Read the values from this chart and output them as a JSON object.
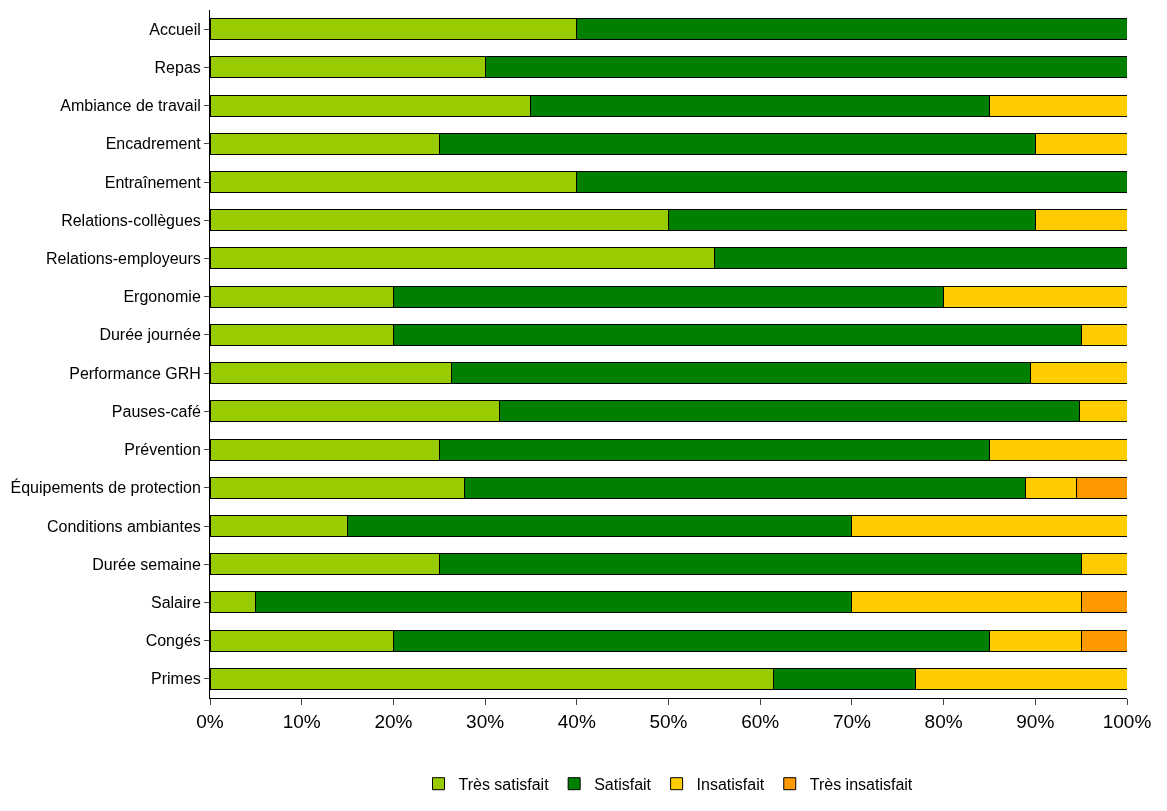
{
  "chart_data": {
    "type": "bar",
    "orientation": "horizontal",
    "stacked": true,
    "legend": "bottom",
    "grid": false,
    "categories": [
      "Accueil",
      "Repas",
      "Ambiance de travail",
      "Encadrement",
      "Entraînement",
      "Relations-collègues",
      "Relations-employeurs",
      "Ergonomie",
      "Durée journée",
      "Performance GRH",
      "Pauses-café",
      "Prévention",
      "Équipements de protection",
      "Conditions ambiantes",
      "Durée semaine",
      "Salaire",
      "Congés",
      "Primes"
    ],
    "xlim": [
      0,
      100
    ],
    "xticks": [
      {
        "value": 0,
        "label": "0%"
      },
      {
        "value": 10,
        "label": "10%"
      },
      {
        "value": 20,
        "label": "20%"
      },
      {
        "value": 30,
        "label": "30%"
      },
      {
        "value": 40,
        "label": "40%"
      },
      {
        "value": 50,
        "label": "50%"
      },
      {
        "value": 60,
        "label": "60%"
      },
      {
        "value": 70,
        "label": "70%"
      },
      {
        "value": 80,
        "label": "80%"
      },
      {
        "value": 90,
        "label": "90%"
      },
      {
        "value": 100,
        "label": "100%"
      }
    ],
    "series": [
      {
        "name": "Très satisfait",
        "color": "#99cc00",
        "values": [
          40,
          30,
          35,
          25,
          40,
          50,
          55,
          20,
          20,
          26.3,
          31.6,
          25,
          27.8,
          15,
          25,
          5,
          20,
          61.5
        ]
      },
      {
        "name": "Satisfait",
        "color": "#008000",
        "values": [
          60,
          70,
          50,
          65,
          60,
          40,
          45,
          60,
          75,
          63.2,
          63.2,
          60,
          61.1,
          55,
          70,
          65,
          65,
          15.4
        ]
      },
      {
        "name": "Insatisfait",
        "color": "#ffcc00",
        "values": [
          null,
          null,
          15,
          10,
          null,
          10,
          null,
          20,
          5,
          10.5,
          5.3,
          15,
          5.6,
          30,
          5,
          25,
          10,
          23.1
        ]
      },
      {
        "name": "Très insatisfait",
        "color": "#ff9900",
        "values": [
          null,
          null,
          null,
          null,
          null,
          null,
          null,
          null,
          null,
          null,
          null,
          null,
          5.6,
          null,
          null,
          5,
          5,
          null
        ]
      }
    ]
  }
}
